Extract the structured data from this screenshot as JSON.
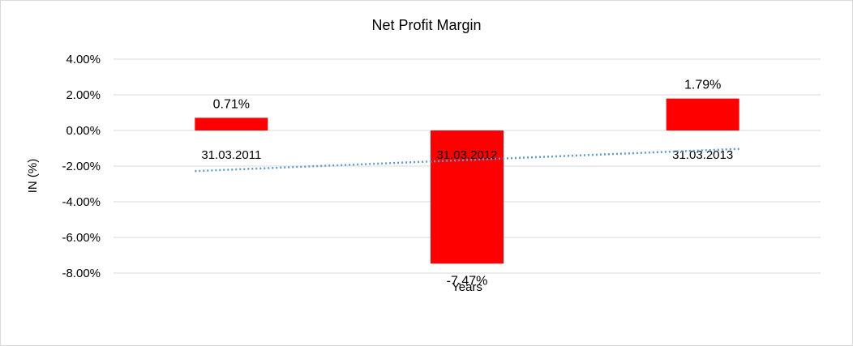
{
  "chart_data": {
    "type": "bar",
    "title": "Net Profit Margin",
    "xlabel": "Years",
    "ylabel": "IN (%)",
    "categories": [
      "31.03.2011",
      "31.03.2012",
      "31.03.2013"
    ],
    "values": [
      0.71,
      -7.47,
      1.79
    ],
    "data_labels": [
      "0.71%",
      "-7.47%",
      "1.79%"
    ],
    "ylim": [
      -8,
      4
    ],
    "yticks": [
      4,
      2,
      0,
      -2,
      -4,
      -6,
      -8
    ],
    "ytick_labels": [
      "4.00%",
      "2.00%",
      "0.00%",
      "-2.00%",
      "-4.00%",
      "-6.00%",
      "-8.00%"
    ],
    "grid": true,
    "legend": "none",
    "trendline": {
      "type": "linear",
      "style": "dotted"
    },
    "colors": {
      "bar": "#ff0000",
      "trendline": "#5b9bd5",
      "grid": "#d9d9d9"
    }
  }
}
